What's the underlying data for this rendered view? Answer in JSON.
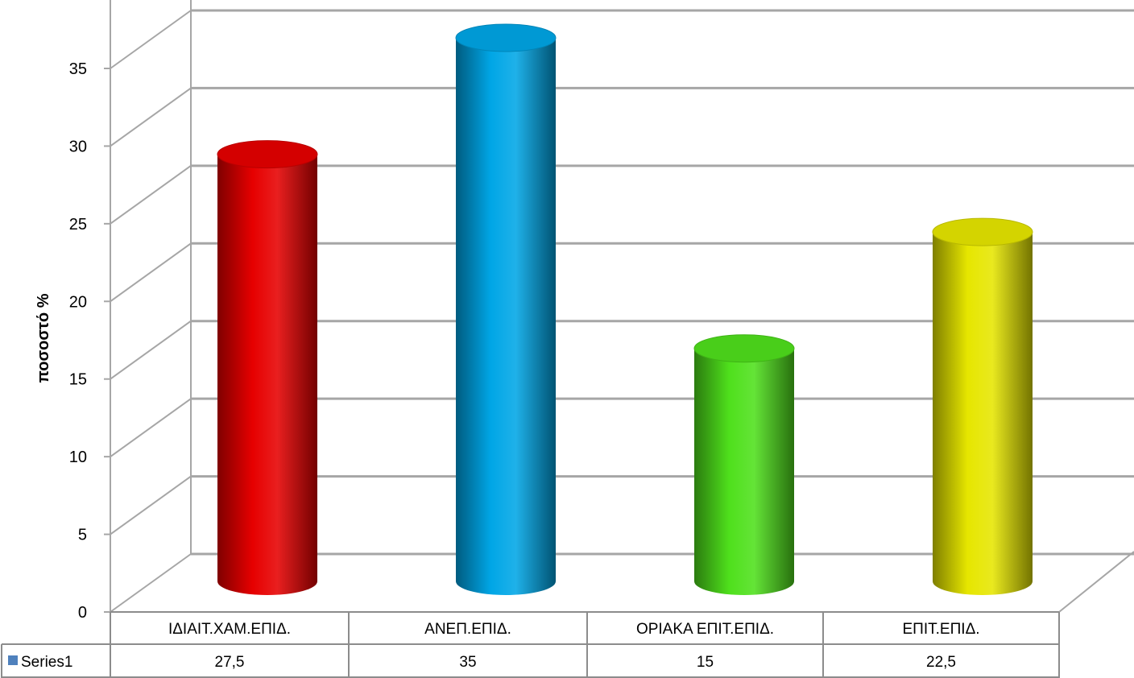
{
  "chart_data": {
    "type": "bar",
    "style": "3d-cylinder",
    "title": "",
    "xlabel": "",
    "ylabel": "ποσοστό %",
    "ylim": [
      0,
      35
    ],
    "yticks": [
      0,
      5,
      10,
      15,
      20,
      25,
      30,
      35
    ],
    "grid": true,
    "categories": [
      "ΙΔΙΑΙΤ.ΧΑΜ.ΕΠΙΔ.",
      "ΑΝΕΠ.ΕΠΙΔ.",
      "ΟΡΙΑΚΑ ΕΠΙΤ.ΕΠΙΔ.",
      "ΕΠΙΤ.ΕΠΙΔ."
    ],
    "series": [
      {
        "name": "Series1",
        "values": [
          27.5,
          35,
          15,
          22.5
        ],
        "value_labels": [
          "27,5",
          "35",
          "15",
          "22,5"
        ],
        "colors": [
          "#e60000",
          "#00a6e6",
          "#4fe01c",
          "#e6e600"
        ],
        "legend_color": "#4f81bd"
      }
    ],
    "data_table": true
  }
}
